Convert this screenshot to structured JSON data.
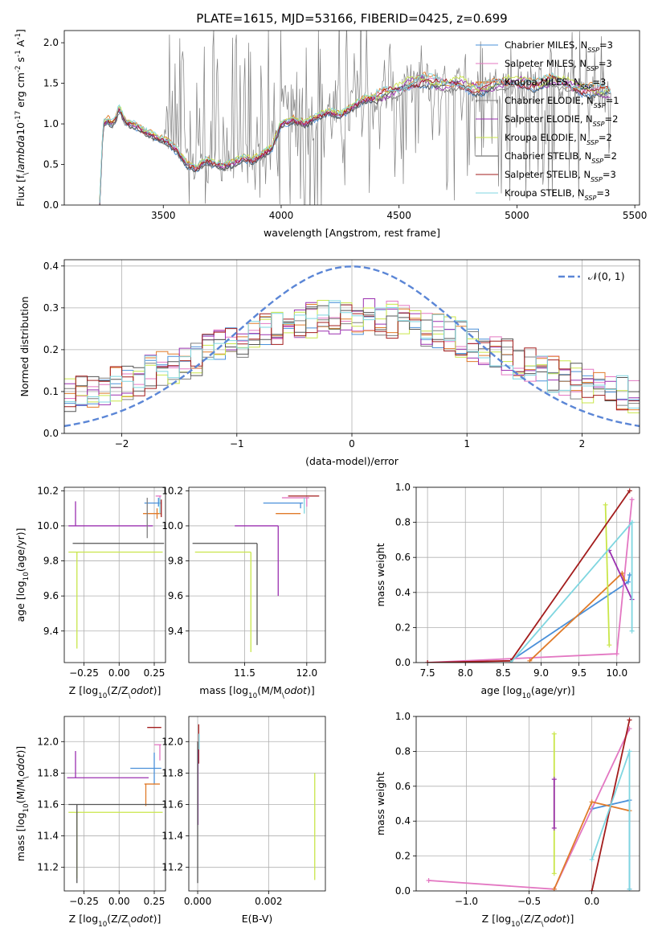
{
  "figure": {
    "title": "PLATE=1615, MJD=53166, FIBERID=0425, z=0.699"
  },
  "legend_models": [
    {
      "label": "Chabrier MILES, N$_{SSP}$=3",
      "color": "#4a90d9"
    },
    {
      "label": "Salpeter MILES, N$_{SSP}$=3",
      "color": "#e377c2"
    },
    {
      "label": "Kroupa MILES, N$_{SSP}$=3",
      "color": "#e07b2a"
    },
    {
      "label": "Chabrier ELODIE, N$_{SSP}$=1",
      "color": "#7f7f7f"
    },
    {
      "label": "Salpeter ELODIE, N$_{SSP}$=2",
      "color": "#9b30b0"
    },
    {
      "label": "Kroupa ELODIE, N$_{SSP}$=2",
      "color": "#c9e64a"
    },
    {
      "label": "Chabrier STELIB, N$_{SSP}$=2",
      "color": "#555555"
    },
    {
      "label": "Salpeter STELIB, N$_{SSP}$=3",
      "color": "#a31d1d"
    },
    {
      "label": "Kroupa STELIB, N$_{SSP}$=3",
      "color": "#7fd6e0"
    }
  ],
  "chart_data": [
    {
      "type": "line",
      "id": "spectrum",
      "xlabel": "wavelength [Angstrom, rest frame]",
      "ylabel": "Flux [f$_\\lambda$10$^{-17}$ erg cm$^{-2}$ s$^{-1}$ A$^{-1}$]",
      "xlim": [
        3080,
        5520
      ],
      "ylim": [
        0,
        2.15
      ],
      "xticks": [
        3500,
        4000,
        4500,
        5000,
        5500
      ],
      "yticks": [
        0.0,
        0.5,
        1.0,
        1.5,
        2.0
      ],
      "ytick_labels": [
        "0.0",
        "0.5",
        "1.0",
        "1.5",
        "2.0"
      ],
      "grid": false,
      "legend_placement": "right",
      "model_continuum": [
        [
          3230,
          0.0
        ],
        [
          3245,
          1.0
        ],
        [
          3265,
          1.05
        ],
        [
          3280,
          1.0
        ],
        [
          3300,
          1.05
        ],
        [
          3310,
          1.2
        ],
        [
          3320,
          1.15
        ],
        [
          3340,
          1.02
        ],
        [
          3360,
          1.0
        ],
        [
          3380,
          0.98
        ],
        [
          3400,
          0.95
        ],
        [
          3420,
          0.9
        ],
        [
          3440,
          0.88
        ],
        [
          3460,
          0.85
        ],
        [
          3480,
          0.82
        ],
        [
          3500,
          0.8
        ],
        [
          3520,
          0.78
        ],
        [
          3540,
          0.72
        ],
        [
          3560,
          0.66
        ],
        [
          3600,
          0.5
        ],
        [
          3640,
          0.45
        ],
        [
          3680,
          0.55
        ],
        [
          3720,
          0.5
        ],
        [
          3760,
          0.48
        ],
        [
          3800,
          0.52
        ],
        [
          3840,
          0.58
        ],
        [
          3880,
          0.55
        ],
        [
          3920,
          0.62
        ],
        [
          3960,
          0.7
        ],
        [
          4000,
          1.0
        ],
        [
          4050,
          1.05
        ],
        [
          4100,
          1.0
        ],
        [
          4150,
          1.08
        ],
        [
          4200,
          1.15
        ],
        [
          4250,
          1.1
        ],
        [
          4300,
          1.2
        ],
        [
          4350,
          1.3
        ],
        [
          4400,
          1.32
        ],
        [
          4450,
          1.38
        ],
        [
          4500,
          1.42
        ],
        [
          4550,
          1.5
        ],
        [
          4600,
          1.55
        ],
        [
          4650,
          1.5
        ],
        [
          4700,
          1.48
        ],
        [
          4750,
          1.5
        ],
        [
          4800,
          1.45
        ],
        [
          4850,
          1.42
        ],
        [
          4900,
          1.48
        ],
        [
          4950,
          1.5
        ],
        [
          5000,
          1.52
        ],
        [
          5050,
          1.5
        ],
        [
          5100,
          1.48
        ],
        [
          5150,
          1.55
        ],
        [
          5200,
          1.5
        ],
        [
          5250,
          1.45
        ],
        [
          5300,
          1.42
        ],
        [
          5350,
          1.4
        ],
        [
          5400,
          1.38
        ]
      ]
    },
    {
      "type": "line",
      "id": "residuals",
      "xlabel": "(data-model)/error",
      "ylabel": "Normed distribution",
      "xlim": [
        -2.5,
        2.5
      ],
      "ylim": [
        0,
        0.415
      ],
      "xticks": [
        -2,
        -1,
        0,
        1,
        2
      ],
      "xtick_labels": [
        "−2",
        "−1",
        "0",
        "1",
        "2"
      ],
      "yticks": [
        0.0,
        0.1,
        0.2,
        0.3,
        0.4
      ],
      "ytick_labels": [
        "0.0",
        "0.1",
        "0.2",
        "0.3",
        "0.4"
      ],
      "grid": true,
      "legend": [
        {
          "label": "𝒩(0, 1)",
          "color": "#5b86d6",
          "style": "dashed"
        }
      ],
      "legend_placement": "top-right",
      "gaussian": {
        "mu": 0,
        "sigma": 1
      }
    },
    {
      "type": "scatter",
      "id": "age-vs-Z",
      "xlabel": "Z [log$_{10}$(Z/Z$_\\odot$)]",
      "ylabel": "age  [log$_{10}$(age/yr)]",
      "xlim": [
        -0.39,
        0.33
      ],
      "ylim": [
        9.22,
        10.22
      ],
      "xticks": [
        -0.25,
        0.0,
        0.25
      ],
      "xtick_labels": [
        "−0.25",
        "0.00",
        "0.25"
      ],
      "yticks": [
        9.4,
        9.6,
        9.8,
        10.0,
        10.2
      ],
      "ytick_labels": [
        "9.4",
        "9.6",
        "9.8",
        "10.0",
        "10.2"
      ],
      "grid": true,
      "errorbars": [
        {
          "color": "#4a90d9",
          "x": 0.28,
          "xerr": [
            0.1,
            0.02
          ],
          "y": 10.13,
          "yerr": [
            0.02,
            0.03
          ]
        },
        {
          "color": "#e377c2",
          "x": 0.29,
          "xerr": [
            0.03,
            0.01
          ],
          "y": 10.17,
          "yerr": [
            0.05,
            0.0
          ]
        },
        {
          "color": "#e07b2a",
          "x": 0.27,
          "xerr": [
            0.1,
            0.03
          ],
          "y": 10.07,
          "yerr": [
            0.03,
            0.03
          ]
        },
        {
          "color": "#9b30b0",
          "x": -0.31,
          "xerr": [
            0.05,
            0.55
          ],
          "y": 10.0,
          "yerr": [
            0.0,
            0.14
          ]
        },
        {
          "color": "#c9e64a",
          "x": -0.3,
          "xerr": [
            0.06,
            0.61
          ],
          "y": 9.85,
          "yerr": [
            0.55,
            0.0
          ]
        },
        {
          "color": "#555555",
          "x": -0.33,
          "xerr": [
            0.0,
            0.65
          ],
          "y": 9.9,
          "yerr": [
            0.0,
            0.0
          ]
        },
        {
          "color": "#a31d1d",
          "x": 0.3,
          "xerr": [
            0.0,
            0.0
          ],
          "y": 10.1,
          "yerr": [
            0.05,
            0.05
          ]
        },
        {
          "color": "#7fd6e0",
          "x": 0.29,
          "xerr": [
            0.0,
            0.0
          ],
          "y": 10.12,
          "yerr": [
            0.05,
            0.04
          ]
        },
        {
          "color": "#7f7f7f",
          "x": 0.2,
          "xerr": [
            0.0,
            0.0
          ],
          "y": 10.1,
          "yerr": [
            0.17,
            0.06
          ]
        }
      ]
    },
    {
      "type": "scatter",
      "id": "age-vs-mass",
      "xlabel": "mass [log$_{10}$(M/M$_\\odot$)]",
      "ylabel": "",
      "xlim": [
        11.05,
        12.15
      ],
      "ylim": [
        9.22,
        10.22
      ],
      "xticks": [
        11.5,
        12.0
      ],
      "xtick_labels": [
        "11.5",
        "12.0"
      ],
      "yticks": [
        9.4,
        9.6,
        9.8,
        10.0,
        10.2
      ],
      "ytick_labels": [
        "9.4",
        "9.6",
        "9.8",
        "10.0",
        "10.2"
      ],
      "grid": true,
      "errorbars": [
        {
          "color": "#4a90d9",
          "x": 11.95,
          "xerr": [
            0.3,
            0.02
          ],
          "y": 10.13,
          "yerr": [
            0.03,
            0.0
          ]
        },
        {
          "color": "#e377c2",
          "x": 12.0,
          "xerr": [
            0.2,
            0.02
          ],
          "y": 10.16,
          "yerr": [
            0.05,
            0.0
          ]
        },
        {
          "color": "#e07b2a",
          "x": 11.75,
          "xerr": [
            0.0,
            0.2
          ],
          "y": 10.07,
          "yerr": [
            0.0,
            0.0
          ]
        },
        {
          "color": "#9b30b0",
          "x": 11.77,
          "xerr": [
            0.35,
            0.0
          ],
          "y": 10.0,
          "yerr": [
            0.4,
            0.0
          ]
        },
        {
          "color": "#c9e64a",
          "x": 11.55,
          "xerr": [
            0.45,
            0.0
          ],
          "y": 9.85,
          "yerr": [
            0.57,
            0.0
          ]
        },
        {
          "color": "#555555",
          "x": 11.6,
          "xerr": [
            0.52,
            0.0
          ],
          "y": 9.9,
          "yerr": [
            0.58,
            0.0
          ]
        },
        {
          "color": "#a31d1d",
          "x": 12.1,
          "xerr": [
            0.25,
            0.0
          ],
          "y": 10.17,
          "yerr": [
            0.0,
            0.0
          ]
        },
        {
          "color": "#7fd6e0",
          "x": 11.98,
          "xerr": [
            0.0,
            0.0
          ],
          "y": 10.12,
          "yerr": [
            0.05,
            0.04
          ]
        }
      ]
    },
    {
      "type": "line",
      "id": "mass-weight-vs-age",
      "xlabel": "age  [log$_{10}$(age/yr)]",
      "ylabel": "mass weight",
      "xlim": [
        7.35,
        10.3
      ],
      "ylim": [
        0,
        1.0
      ],
      "xticks": [
        7.5,
        8.0,
        8.5,
        9.0,
        9.5,
        10.0
      ],
      "xtick_labels": [
        "7.5",
        "8.0",
        "8.5",
        "9.0",
        "9.5",
        "10.0"
      ],
      "yticks": [
        0.0,
        0.2,
        0.4,
        0.6,
        0.8,
        1.0
      ],
      "ytick_labels": [
        "0.0",
        "0.2",
        "0.4",
        "0.6",
        "0.8",
        "1.0"
      ],
      "grid": true,
      "series": [
        {
          "color": "#4a90d9",
          "points": [
            [
              8.6,
              0.01
            ],
            [
              10.15,
              0.46
            ],
            [
              10.17,
              0.5
            ]
          ]
        },
        {
          "color": "#e377c2",
          "points": [
            [
              7.5,
              0.0
            ],
            [
              10.0,
              0.05
            ],
            [
              10.2,
              0.93
            ]
          ]
        },
        {
          "color": "#e07b2a",
          "points": [
            [
              8.85,
              0.01
            ],
            [
              10.07,
              0.51
            ],
            [
              10.1,
              0.47
            ]
          ]
        },
        {
          "color": "#9b30b0",
          "points": [
            [
              9.9,
              0.64
            ],
            [
              10.2,
              0.36
            ]
          ]
        },
        {
          "color": "#c9e64a",
          "points": [
            [
              9.85,
              0.9
            ],
            [
              9.9,
              0.1
            ]
          ]
        },
        {
          "color": "#a31d1d",
          "points": [
            [
              7.5,
              0.0
            ],
            [
              8.6,
              0.01
            ],
            [
              10.17,
              0.98
            ]
          ]
        },
        {
          "color": "#7fd6e0",
          "points": [
            [
              8.6,
              0.0
            ],
            [
              10.2,
              0.8
            ],
            [
              10.2,
              0.18
            ]
          ]
        }
      ]
    },
    {
      "type": "scatter",
      "id": "mass-vs-Z",
      "xlabel": "Z [log$_{10}$(Z/Z$_\\odot$)]",
      "ylabel": "mass [log$_{10}$(M/M$_\\odot$)]",
      "xlim": [
        -0.39,
        0.33
      ],
      "ylim": [
        11.05,
        12.16
      ],
      "xticks": [
        -0.25,
        0.0,
        0.25
      ],
      "xtick_labels": [
        "−0.25",
        "0.00",
        "0.25"
      ],
      "yticks": [
        11.2,
        11.4,
        11.6,
        11.8,
        12.0
      ],
      "ytick_labels": [
        "11.2",
        "11.4",
        "11.6",
        "11.8",
        "12.0"
      ],
      "grid": true,
      "errorbars": [
        {
          "color": "#4a90d9",
          "x": 0.25,
          "xerr": [
            0.17,
            0.05
          ],
          "y": 11.83,
          "yerr": [
            0.1,
            0.1
          ]
        },
        {
          "color": "#e377c2",
          "x": 0.29,
          "xerr": [
            0.04,
            0.01
          ],
          "y": 11.98,
          "yerr": [
            0.1,
            0.0
          ]
        },
        {
          "color": "#e07b2a",
          "x": 0.19,
          "xerr": [
            0.01,
            0.1
          ],
          "y": 11.73,
          "yerr": [
            0.14,
            0.0
          ]
        },
        {
          "color": "#9b30b0",
          "x": -0.31,
          "xerr": [
            0.06,
            0.52
          ],
          "y": 11.77,
          "yerr": [
            0.0,
            0.17
          ]
        },
        {
          "color": "#c9e64a",
          "x": -0.3,
          "xerr": [
            0.06,
            0.61
          ],
          "y": 11.55,
          "yerr": [
            0.42,
            0.0
          ]
        },
        {
          "color": "#555555",
          "x": -0.3,
          "xerr": [
            0.06,
            0.62
          ],
          "y": 11.6,
          "yerr": [
            0.5,
            0.0
          ]
        },
        {
          "color": "#a31d1d",
          "x": 0.3,
          "xerr": [
            0.1,
            0.0
          ],
          "y": 12.09,
          "yerr": [
            0.0,
            0.0
          ]
        },
        {
          "color": "#7fd6e0",
          "x": 0.29,
          "xerr": [
            0.0,
            0.0
          ],
          "y": 11.95,
          "yerr": [
            0.0,
            0.0
          ]
        }
      ]
    },
    {
      "type": "scatter",
      "id": "mass-vs-ebv",
      "xlabel": "E(B-V)",
      "ylabel": "",
      "xlim": [
        -0.00025,
        0.0036
      ],
      "ylim": [
        11.05,
        12.16
      ],
      "xticks": [
        0.0,
        0.002
      ],
      "xtick_labels": [
        "0.000",
        "0.002"
      ],
      "yticks": [
        11.2,
        11.4,
        11.6,
        11.8,
        12.0
      ],
      "ytick_labels": [
        "11.2",
        "11.4",
        "11.6",
        "11.8",
        "12.0"
      ],
      "grid": true,
      "errorbars": [
        {
          "color": "#a31d1d",
          "x": 3e-05,
          "xerr": [
            0,
            0
          ],
          "y": 11.96,
          "yerr": [
            0.1,
            0.15
          ]
        },
        {
          "color": "#9b30b0",
          "x": 1e-05,
          "xerr": [
            0,
            0
          ],
          "y": 11.75,
          "yerr": [
            0.28,
            0.2
          ]
        },
        {
          "color": "#555555",
          "x": 0.0,
          "xerr": [
            0,
            0
          ],
          "y": 11.6,
          "yerr": [
            0.5,
            0.4
          ]
        },
        {
          "color": "#7fd6e0",
          "x": 4e-05,
          "xerr": [
            0,
            0
          ],
          "y": 11.95,
          "yerr": [
            0.0,
            0.1
          ]
        },
        {
          "color": "#c9e64a",
          "x": 0.0033,
          "xerr": [
            0,
            0
          ],
          "y": 11.45,
          "yerr": [
            0.33,
            0.35
          ]
        }
      ]
    },
    {
      "type": "line",
      "id": "mass-weight-vs-Z",
      "xlabel": "Z [log$_{10}$(Z/Z$_\\odot$)]",
      "ylabel": "mass weight",
      "xlim": [
        -1.4,
        0.38
      ],
      "ylim": [
        0,
        1.0
      ],
      "xticks": [
        -1.0,
        -0.5,
        0.0
      ],
      "xtick_labels": [
        "−1.0",
        "−0.5",
        "0.0"
      ],
      "yticks": [
        0.0,
        0.2,
        0.4,
        0.6,
        0.8,
        1.0
      ],
      "ytick_labels": [
        "0.0",
        "0.2",
        "0.4",
        "0.6",
        "0.8",
        "1.0"
      ],
      "grid": true,
      "series": [
        {
          "color": "#4a90d9",
          "points": [
            [
              0.0,
              0.47
            ],
            [
              0.3,
              0.52
            ],
            [
              0.3,
              0.01
            ]
          ]
        },
        {
          "color": "#e377c2",
          "points": [
            [
              -1.3,
              0.06
            ],
            [
              -0.3,
              0.01
            ],
            [
              0.3,
              0.93
            ]
          ]
        },
        {
          "color": "#e07b2a",
          "points": [
            [
              -0.3,
              0.01
            ],
            [
              0.0,
              0.51
            ],
            [
              0.3,
              0.46
            ]
          ]
        },
        {
          "color": "#a31d1d",
          "points": [
            [
              0.0,
              0.0
            ],
            [
              0.3,
              0.98
            ]
          ]
        },
        {
          "color": "#7fd6e0",
          "points": [
            [
              0.0,
              0.18
            ],
            [
              0.3,
              0.8
            ],
            [
              0.3,
              0.01
            ]
          ]
        },
        {
          "color": "#c9e64a",
          "points": [
            [
              -0.3,
              0.9
            ],
            [
              -0.3,
              0.1
            ]
          ]
        },
        {
          "color": "#9b30b0",
          "points": [
            [
              -0.3,
              0.64
            ],
            [
              -0.3,
              0.36
            ]
          ]
        }
      ]
    }
  ]
}
